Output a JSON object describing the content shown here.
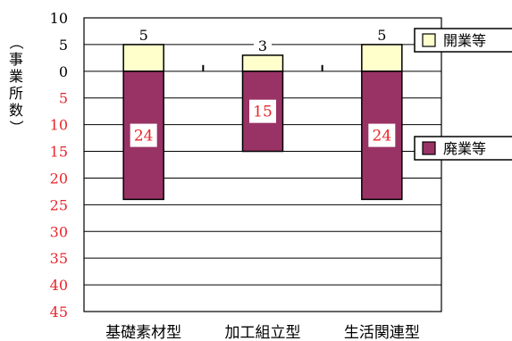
{
  "chart_data": {
    "type": "bar",
    "ylabel_chars": [
      "（",
      "事",
      "業",
      "所",
      "数",
      "）"
    ],
    "categories": [
      "基礎素材型",
      "加工組立型",
      "生活関連型"
    ],
    "series": [
      {
        "name": "開業等",
        "values": [
          5,
          3,
          5
        ],
        "color": "#ffffcc"
      },
      {
        "name": "廃業等",
        "values": [
          24,
          15,
          24
        ],
        "color": "#993366"
      }
    ],
    "yticks_positive": [
      "10",
      "5",
      "0"
    ],
    "yticks_negative": [
      "5",
      "10",
      "15",
      "20",
      "25",
      "30",
      "35",
      "40",
      "45"
    ],
    "ylim": [
      -45,
      10
    ],
    "grid": true,
    "legend_position": "right",
    "positive_label_color": "#000000",
    "negative_label_color": "#e8262b"
  }
}
